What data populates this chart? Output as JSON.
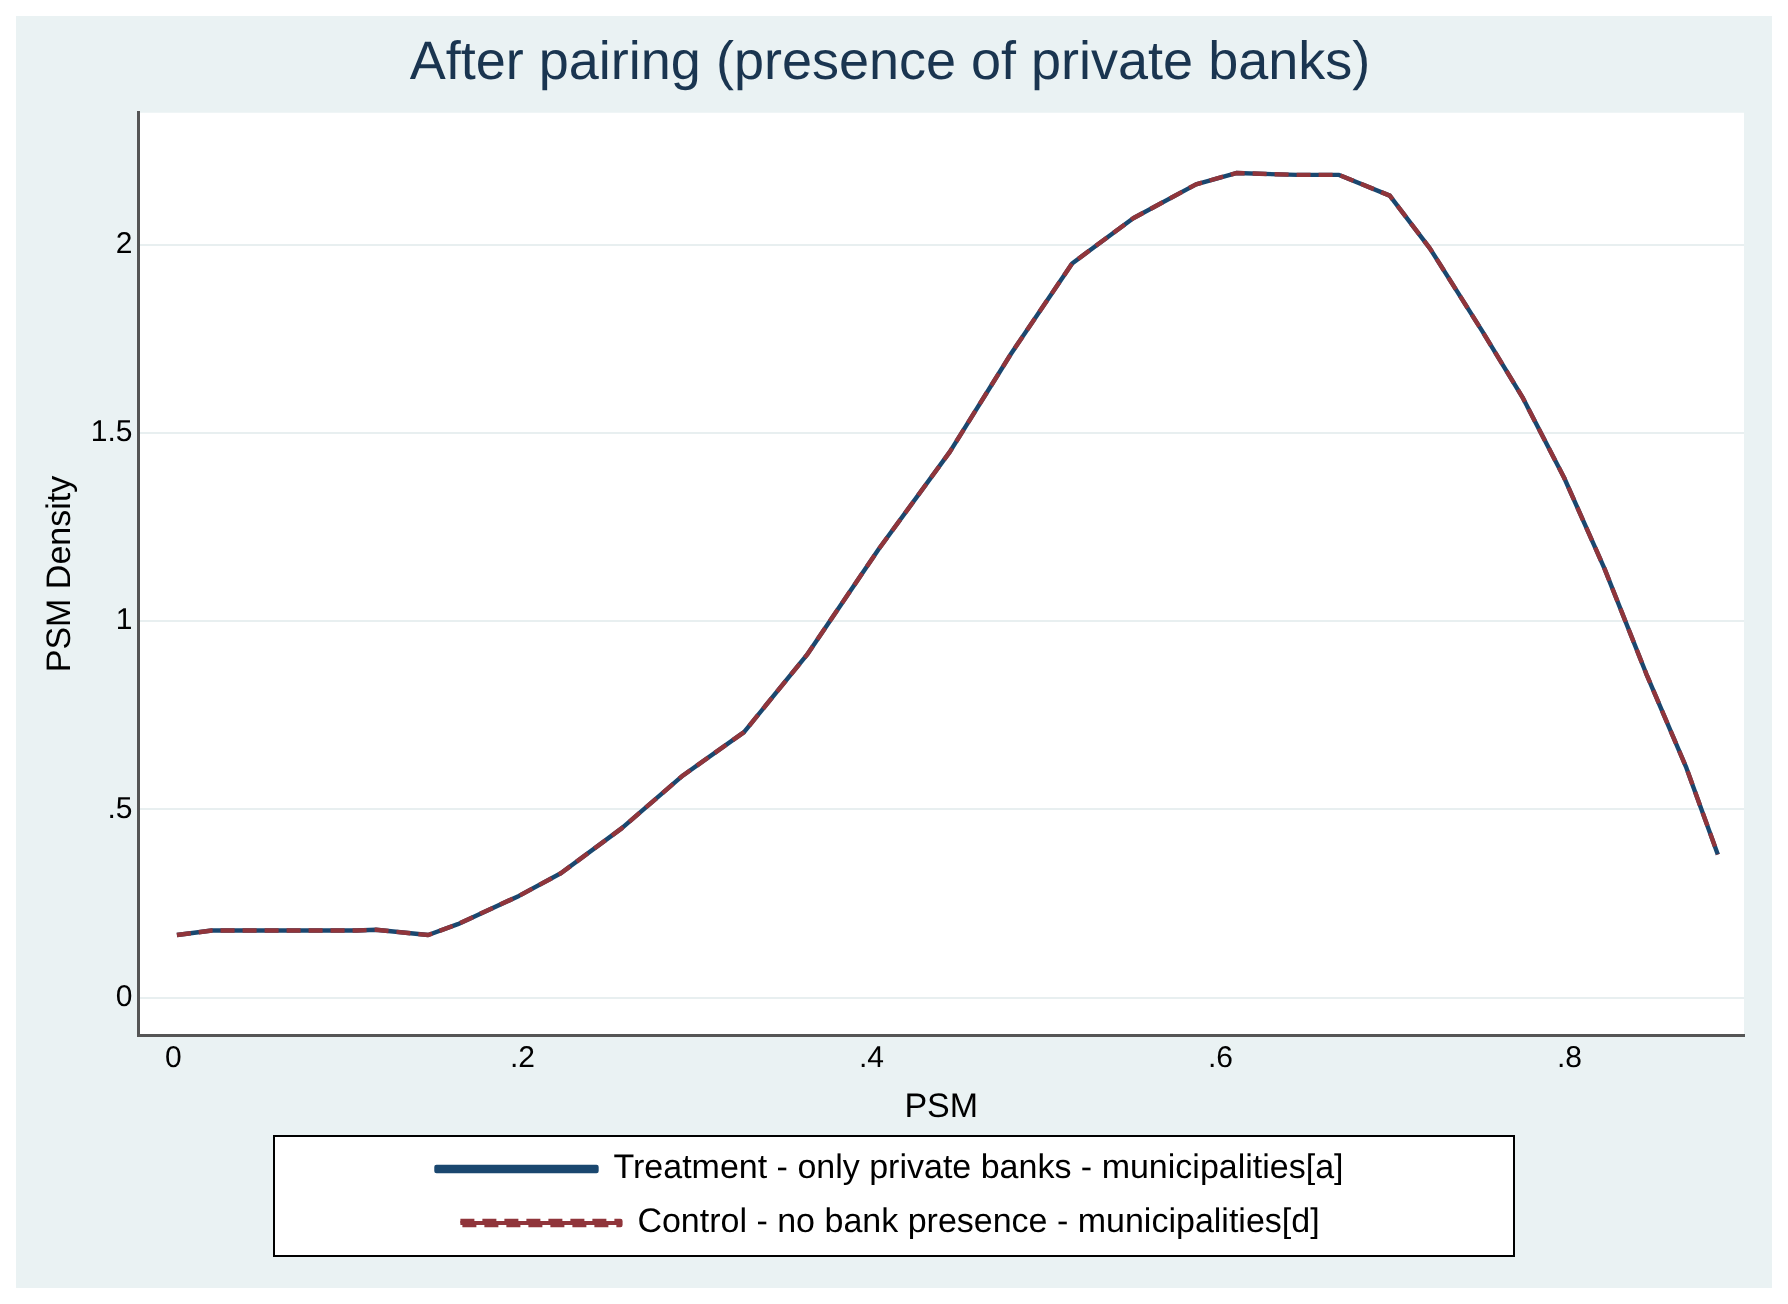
{
  "chart_data": {
    "type": "line",
    "title": "After pairing (presence of private banks)",
    "xlabel": "PSM",
    "ylabel": "PSM Density",
    "x": [
      0.002,
      0.022,
      0.105,
      0.116,
      0.146,
      0.163,
      0.198,
      0.222,
      0.257,
      0.292,
      0.327,
      0.363,
      0.404,
      0.445,
      0.48,
      0.515,
      0.55,
      0.586,
      0.609,
      0.644,
      0.668,
      0.697,
      0.72,
      0.75,
      0.773,
      0.797,
      0.82,
      0.844,
      0.867,
      0.885
    ],
    "series": [
      {
        "name": "Treatment - only private banks - municipalities[a]",
        "color": "#1a476f",
        "line_style": "solid",
        "values": [
          0.166,
          0.178,
          0.178,
          0.18,
          0.166,
          0.195,
          0.27,
          0.33,
          0.45,
          0.59,
          0.705,
          0.91,
          1.19,
          1.45,
          1.71,
          1.95,
          2.07,
          2.16,
          2.19,
          2.185,
          2.185,
          2.13,
          1.99,
          1.77,
          1.595,
          1.38,
          1.14,
          0.86,
          0.61,
          0.38
        ]
      },
      {
        "name": "Control - no bank presence - municipalities[d]",
        "color": "#90353b",
        "line_style": "dashed",
        "values": [
          0.166,
          0.178,
          0.178,
          0.18,
          0.166,
          0.195,
          0.27,
          0.33,
          0.45,
          0.59,
          0.705,
          0.91,
          1.19,
          1.45,
          1.71,
          1.95,
          2.07,
          2.16,
          2.19,
          2.185,
          2.185,
          2.13,
          1.99,
          1.77,
          1.595,
          1.38,
          1.14,
          0.86,
          0.61,
          0.38
        ]
      }
    ],
    "xlim": [
      -0.02,
      0.9
    ],
    "xticks": [
      0,
      {
        "value": 0.2,
        "label": ".2"
      },
      {
        "value": 0.4,
        "label": ".4"
      },
      {
        "value": 0.6,
        "label": ".6"
      },
      {
        "value": 0.8,
        "label": ".8"
      }
    ],
    "ylim": [
      -0.1,
      2.35
    ],
    "yticks": [
      0,
      {
        "value": 0.5,
        "label": ".5"
      },
      1,
      1.5,
      2
    ],
    "grid": "y",
    "legend": "bottom",
    "marker": "none"
  }
}
